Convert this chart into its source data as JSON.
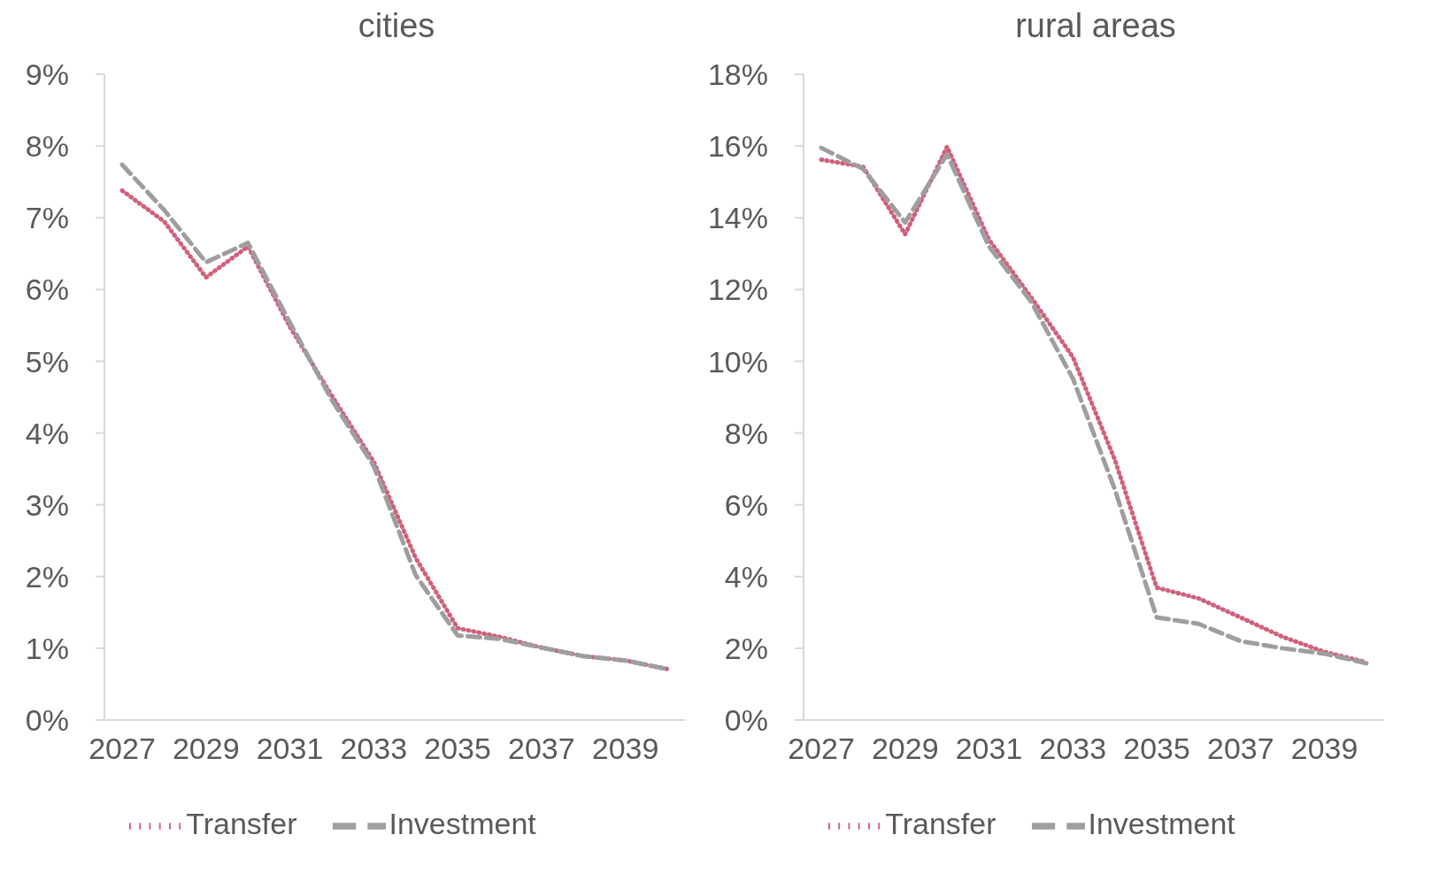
{
  "chart_data": [
    {
      "type": "line",
      "title": "cities",
      "categories": [
        "2027",
        null,
        "2029",
        null,
        "2031",
        null,
        "2033",
        null,
        "2035",
        null,
        "2037",
        null,
        "2039",
        null
      ],
      "series": [
        {
          "name": "Transfer",
          "color": "#d0607a",
          "line_style": "dotted",
          "values": [
            7.38,
            6.95,
            6.17,
            6.6,
            5.48,
            4.52,
            3.6,
            2.26,
            1.28,
            1.16,
            1.01,
            0.89,
            0.83,
            0.71
          ]
        },
        {
          "name": "Investment",
          "color": "#9e9e9e",
          "line_style": "dashed",
          "values": [
            7.74,
            7.11,
            6.38,
            6.65,
            5.54,
            4.46,
            3.54,
            2.02,
            1.18,
            1.13,
            1.01,
            0.89,
            0.83,
            0.71
          ]
        }
      ],
      "ylim": [
        0,
        9
      ],
      "yticks": [
        {
          "value": 0,
          "label": "0%"
        },
        {
          "value": 1,
          "label": "1%"
        },
        {
          "value": 2,
          "label": "2%"
        },
        {
          "value": 3,
          "label": "3%"
        },
        {
          "value": 4,
          "label": "4%"
        },
        {
          "value": 5,
          "label": "5%"
        },
        {
          "value": 6,
          "label": "6%"
        },
        {
          "value": 7,
          "label": "7%"
        },
        {
          "value": 8,
          "label": "8%"
        },
        {
          "value": 9,
          "label": "9%"
        }
      ],
      "grid": false,
      "legend": "bottom",
      "marker": "none"
    },
    {
      "type": "line",
      "title": "rural areas",
      "categories": [
        "2027",
        null,
        "2029",
        null,
        "2031",
        null,
        "2033",
        null,
        "2035",
        null,
        "2037",
        null,
        "2039",
        null
      ],
      "series": [
        {
          "name": "Transfer",
          "color": "#d0607a",
          "line_style": "dotted",
          "values": [
            15.62,
            15.42,
            13.54,
            15.98,
            13.39,
            11.79,
            10.12,
            7.26,
            3.69,
            3.39,
            2.86,
            2.32,
            1.9,
            1.61
          ]
        },
        {
          "name": "Investment",
          "color": "#9e9e9e",
          "line_style": "dashed",
          "values": [
            15.95,
            15.36,
            13.87,
            15.77,
            13.2,
            11.67,
            9.52,
            6.43,
            2.86,
            2.68,
            2.2,
            2.0,
            1.85,
            1.58
          ]
        }
      ],
      "ylim": [
        0,
        18
      ],
      "yticks": [
        {
          "value": 0,
          "label": "0%"
        },
        {
          "value": 2,
          "label": "2%"
        },
        {
          "value": 4,
          "label": "4%"
        },
        {
          "value": 6,
          "label": "6%"
        },
        {
          "value": 8,
          "label": "8%"
        },
        {
          "value": 10,
          "label": "10%"
        },
        {
          "value": 12,
          "label": "12%"
        },
        {
          "value": 14,
          "label": "14%"
        },
        {
          "value": 16,
          "label": "16%"
        },
        {
          "value": 18,
          "label": "18%"
        }
      ],
      "grid": false,
      "legend": "bottom",
      "marker": "none"
    }
  ]
}
